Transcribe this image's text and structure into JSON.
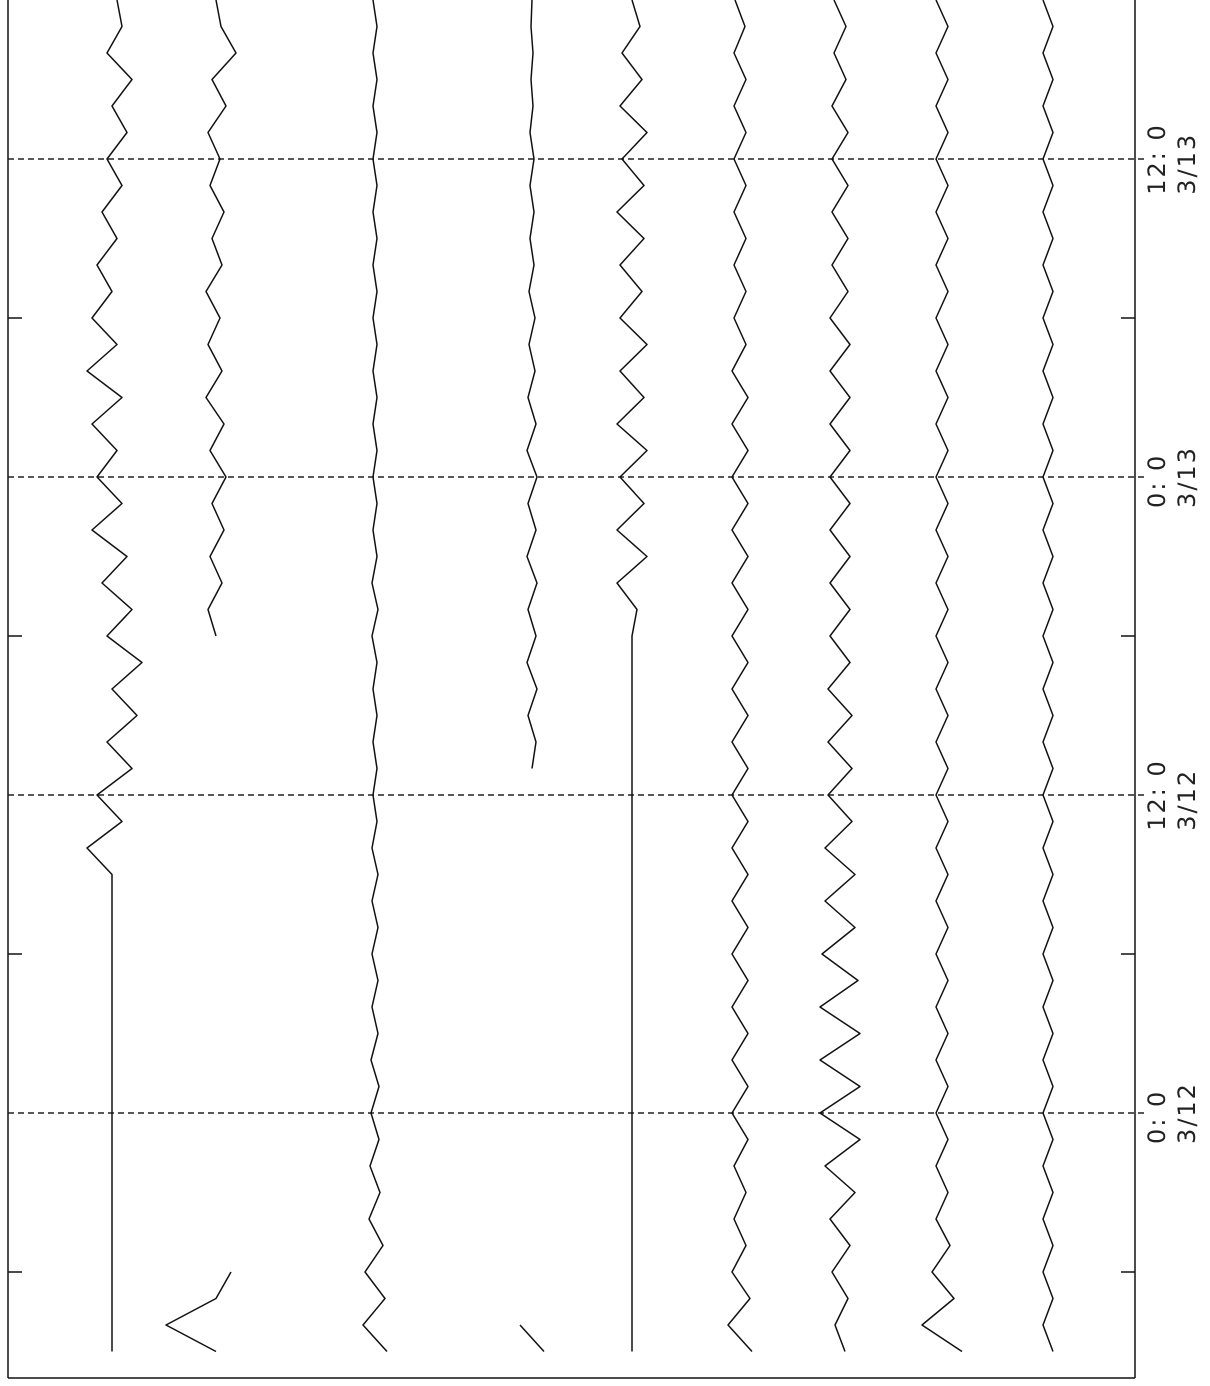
{
  "chart_data": {
    "type": "line",
    "ylim": [
      -10,
      42
    ],
    "yticks": [
      {
        "value": 0,
        "label": "0: 0\n3/12"
      },
      {
        "value": 12,
        "label": "12: 0\n3/12"
      },
      {
        "value": 24,
        "label": "0: 0\n3/13"
      },
      {
        "value": 36,
        "label": "12: 0\n3/13"
      }
    ],
    "minor_yticks": [
      -6,
      6,
      18,
      30
    ],
    "grid": true,
    "x": [
      -9,
      -8,
      -7,
      -6,
      -5,
      -4,
      -3,
      -2,
      -1,
      0,
      1,
      2,
      3,
      4,
      5,
      6,
      7,
      8,
      9,
      10,
      11,
      12,
      13,
      14,
      15,
      16,
      17,
      18,
      19,
      20,
      21,
      22,
      23,
      24,
      25,
      26,
      27,
      28,
      29,
      30,
      31,
      32,
      33,
      34,
      35,
      36,
      37,
      38,
      39,
      40,
      41,
      42
    ],
    "series": [
      {
        "color": "#111",
        "values": [
          0,
          0,
          0,
          0,
          0,
          0,
          0,
          0,
          0,
          0,
          0,
          0,
          0,
          0,
          0,
          0,
          0,
          0,
          0,
          -25,
          10,
          -15,
          20,
          -5,
          25,
          0,
          30,
          -5,
          20,
          -10,
          15,
          -20,
          10,
          -15,
          5,
          -20,
          10,
          -25,
          5,
          -20,
          0,
          -15,
          5,
          -10,
          10,
          -5,
          15,
          0,
          20,
          -5,
          10,
          5
        ]
      },
      {
        "color": "#111",
        "values": [
          0,
          -50,
          0,
          15,
          null,
          null,
          null,
          null,
          null,
          null,
          null,
          null,
          null,
          null,
          null,
          null,
          null,
          null,
          null,
          null,
          null,
          null,
          null,
          null,
          null,
          null,
          null,
          0,
          -8,
          6,
          -6,
          8,
          -4,
          10,
          -6,
          8,
          -10,
          6,
          -8,
          4,
          -10,
          6,
          -4,
          8,
          -6,
          4,
          -8,
          10,
          -4,
          20,
          5,
          0
        ]
      },
      {
        "color": "#111",
        "values": [
          12,
          -12,
          10,
          -10,
          8,
          -6,
          5,
          -5,
          4,
          -4,
          4,
          -4,
          3,
          -3,
          3,
          -3,
          3,
          -3,
          3,
          -3,
          2,
          -2,
          2,
          -2,
          2,
          -2,
          2,
          -3,
          3,
          -3,
          2,
          -2,
          2,
          -2,
          2,
          -2,
          2,
          -2,
          2,
          -2,
          2,
          -2,
          2,
          -2,
          2,
          -2,
          2,
          -2,
          2,
          -2,
          2,
          -2
        ]
      },
      {
        "color": "#111",
        "values": [
          12,
          -12,
          null,
          null,
          null,
          null,
          null,
          null,
          null,
          null,
          null,
          null,
          null,
          null,
          null,
          null,
          null,
          null,
          null,
          null,
          null,
          null,
          0,
          4,
          -4,
          5,
          -5,
          4,
          -4,
          5,
          -5,
          4,
          -4,
          5,
          -5,
          4,
          -4,
          3,
          -3,
          3,
          -3,
          2,
          -2,
          2,
          -2,
          2,
          -2,
          1,
          -1,
          1,
          -1,
          0
        ]
      },
      {
        "color": "#111",
        "values": [
          0,
          0,
          0,
          0,
          0,
          0,
          0,
          0,
          0,
          0,
          0,
          0,
          0,
          0,
          0,
          0,
          0,
          0,
          0,
          0,
          0,
          0,
          0,
          0,
          0,
          0,
          0,
          0,
          5,
          -15,
          15,
          -15,
          12,
          -12,
          15,
          -15,
          12,
          -12,
          15,
          -12,
          10,
          -12,
          12,
          -15,
          12,
          -10,
          15,
          -12,
          10,
          -10,
          8,
          0
        ]
      },
      {
        "color": "#111",
        "values": [
          12,
          -12,
          10,
          -8,
          6,
          -6,
          6,
          -6,
          8,
          -8,
          8,
          -8,
          8,
          -8,
          8,
          -8,
          8,
          -8,
          8,
          -8,
          8,
          -8,
          8,
          -8,
          8,
          -8,
          8,
          -8,
          8,
          -8,
          8,
          -8,
          8,
          -8,
          8,
          -8,
          8,
          -8,
          6,
          -6,
          6,
          -6,
          6,
          -6,
          6,
          -6,
          6,
          -6,
          6,
          -6,
          5,
          -5
        ]
      },
      {
        "color": "#111",
        "values": [
          5,
          -5,
          8,
          -8,
          10,
          -10,
          15,
          -15,
          20,
          -20,
          20,
          -20,
          20,
          -20,
          18,
          -18,
          15,
          -15,
          15,
          -15,
          12,
          -12,
          12,
          -12,
          12,
          -12,
          10,
          -10,
          10,
          -10,
          10,
          -10,
          10,
          -10,
          10,
          -10,
          10,
          -10,
          10,
          -10,
          8,
          -8,
          8,
          -8,
          8,
          -8,
          8,
          -8,
          6,
          -6,
          6,
          -6
        ]
      },
      {
        "color": "#111",
        "values": [
          20,
          -20,
          12,
          -10,
          8,
          -6,
          6,
          -6,
          6,
          -6,
          6,
          -6,
          6,
          -6,
          6,
          -6,
          6,
          -6,
          6,
          -6,
          6,
          -6,
          6,
          -6,
          6,
          -6,
          6,
          -6,
          6,
          -6,
          6,
          -6,
          6,
          -6,
          6,
          -6,
          6,
          -6,
          6,
          -6,
          6,
          -6,
          6,
          -6,
          6,
          -6,
          6,
          -6,
          6,
          -6,
          6,
          -6
        ]
      },
      {
        "color": "#111",
        "values": [
          5,
          -5,
          5,
          -5,
          5,
          -5,
          5,
          -5,
          5,
          -5,
          5,
          -5,
          5,
          -5,
          5,
          -5,
          5,
          -5,
          5,
          -5,
          5,
          -5,
          5,
          -5,
          5,
          -5,
          5,
          -5,
          5,
          -5,
          5,
          -5,
          5,
          -5,
          5,
          -5,
          5,
          -5,
          5,
          -5,
          5,
          -5,
          5,
          -5,
          5,
          -5,
          5,
          -5,
          5,
          -5,
          5,
          -5
        ]
      }
    ]
  }
}
